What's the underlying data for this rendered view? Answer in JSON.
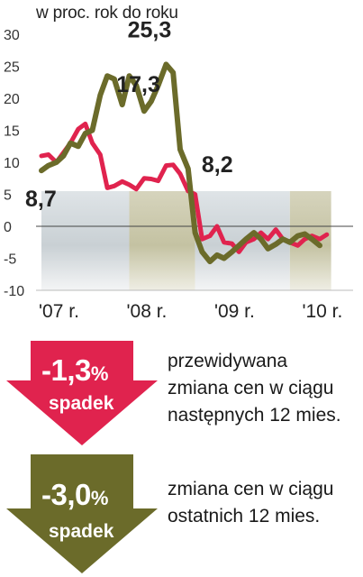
{
  "chart_data": {
    "type": "line",
    "title": "",
    "unit_label": "w proc. rok do roku",
    "xlabel": "",
    "ylabel": "",
    "ylim": [
      -10,
      30
    ],
    "yticks": [
      "30",
      "25",
      "20",
      "15",
      "10",
      "5",
      "0",
      "-5",
      "-10"
    ],
    "x_range": [
      2007.0,
      2010.55
    ],
    "xticks": [
      {
        "label": "'07 r.",
        "x": 2007.2
      },
      {
        "label": "'08 r.",
        "x": 2008.2
      },
      {
        "label": "'09 r.",
        "x": 2009.2
      },
      {
        "label": "'10 r.",
        "x": 2010.2
      }
    ],
    "grid": false,
    "series": [
      {
        "color": "#e0234e",
        "points": [
          [
            2007.0,
            11.0
          ],
          [
            2007.08,
            11.2
          ],
          [
            2007.17,
            10.0
          ],
          [
            2007.25,
            11.5
          ],
          [
            2007.33,
            13.0
          ],
          [
            2007.42,
            15.2
          ],
          [
            2007.5,
            16.0
          ],
          [
            2007.58,
            13.0
          ],
          [
            2007.67,
            11.2
          ],
          [
            2007.75,
            6.0
          ],
          [
            2007.83,
            6.3
          ],
          [
            2007.92,
            7.0
          ],
          [
            2008.0,
            6.5
          ],
          [
            2008.08,
            5.8
          ],
          [
            2008.17,
            7.5
          ],
          [
            2008.25,
            7.4
          ],
          [
            2008.33,
            7.1
          ],
          [
            2008.42,
            9.5
          ],
          [
            2008.5,
            9.6
          ],
          [
            2008.58,
            8.2
          ],
          [
            2008.67,
            5.5
          ],
          [
            2008.75,
            5.0
          ],
          [
            2008.83,
            -2.0
          ],
          [
            2008.92,
            -1.5
          ],
          [
            2009.0,
            0.0
          ],
          [
            2009.08,
            -2.5
          ],
          [
            2009.17,
            -2.7
          ],
          [
            2009.25,
            -4.0
          ],
          [
            2009.33,
            -2.5
          ],
          [
            2009.42,
            -2.0
          ],
          [
            2009.5,
            -1.0
          ],
          [
            2009.58,
            -2.0
          ],
          [
            2009.67,
            -0.5
          ],
          [
            2009.75,
            -2.0
          ],
          [
            2009.83,
            -2.5
          ],
          [
            2009.92,
            -3.0
          ],
          [
            2010.0,
            -2.0
          ],
          [
            2010.08,
            -1.5
          ],
          [
            2010.17,
            -2.0
          ],
          [
            2010.25,
            -1.3
          ]
        ]
      },
      {
        "color": "#6b6b2a",
        "points": [
          [
            2007.0,
            8.7
          ],
          [
            2007.08,
            9.5
          ],
          [
            2007.17,
            10.0
          ],
          [
            2007.25,
            11.0
          ],
          [
            2007.33,
            13.0
          ],
          [
            2007.42,
            12.5
          ],
          [
            2007.5,
            14.5
          ],
          [
            2007.58,
            15.0
          ],
          [
            2007.67,
            20.5
          ],
          [
            2007.75,
            23.5
          ],
          [
            2007.83,
            23.0
          ],
          [
            2007.92,
            19.0
          ],
          [
            2008.0,
            23.5
          ],
          [
            2008.08,
            22.0
          ],
          [
            2008.17,
            18.0
          ],
          [
            2008.25,
            19.5
          ],
          [
            2008.33,
            22.0
          ],
          [
            2008.42,
            25.3
          ],
          [
            2008.5,
            24.0
          ],
          [
            2008.58,
            12.0
          ],
          [
            2008.67,
            9.0
          ],
          [
            2008.75,
            -1.0
          ],
          [
            2008.83,
            -4.0
          ],
          [
            2008.92,
            -5.5
          ],
          [
            2009.0,
            -4.5
          ],
          [
            2009.08,
            -5.0
          ],
          [
            2009.17,
            -4.0
          ],
          [
            2009.25,
            -3.0
          ],
          [
            2009.33,
            -2.0
          ],
          [
            2009.42,
            -1.0
          ],
          [
            2009.5,
            -2.0
          ],
          [
            2009.58,
            -3.5
          ],
          [
            2009.67,
            -2.8
          ],
          [
            2009.75,
            -2.0
          ],
          [
            2009.83,
            -2.5
          ],
          [
            2009.92,
            -1.5
          ],
          [
            2010.0,
            -1.2
          ],
          [
            2010.08,
            -2.0
          ],
          [
            2010.17,
            -3.0
          ]
        ]
      }
    ],
    "annotations": [
      {
        "text": "8,7",
        "x": 2007.0,
        "y": 8.7
      },
      {
        "text": "17,3",
        "x": 2008.1,
        "y": 17.3
      },
      {
        "text": "25,3",
        "x": 2008.35,
        "y": 25.3
      },
      {
        "text": "8,2",
        "x": 2008.62,
        "y": 8.2
      }
    ]
  },
  "forecast": {
    "value": "-1,3",
    "percent_sign": "%",
    "word": "spadek",
    "caption_lines": [
      "przewidywana",
      "zmiana cen w ciągu",
      "następnych 12 mies."
    ],
    "color": "#e0234e"
  },
  "past": {
    "value": "-3,0",
    "percent_sign": "%",
    "word": "spadek",
    "caption_lines": [
      "zmiana cen w ciągu",
      "ostatnich 12 mies."
    ],
    "color": "#6b6b2a"
  }
}
